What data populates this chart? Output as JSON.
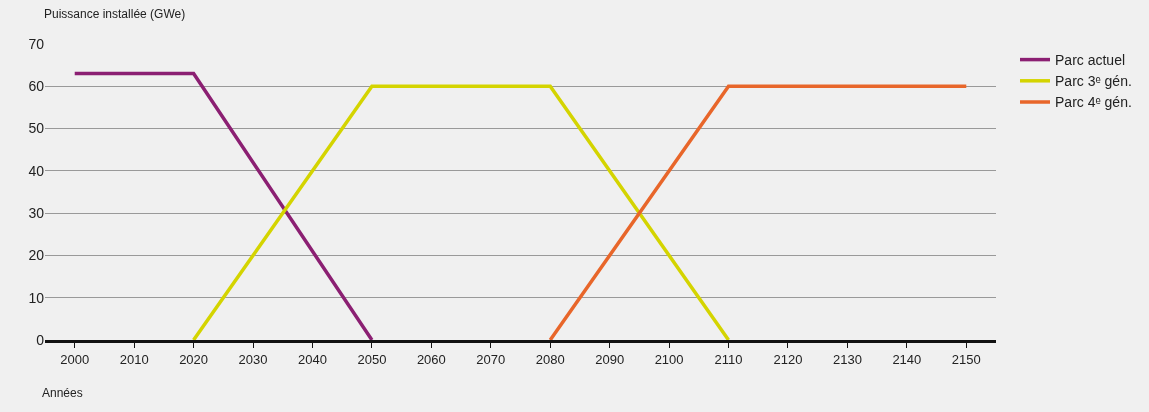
{
  "chart_data": {
    "type": "line",
    "xlabel": "Années",
    "ylabel": "Puissance installée (GWe)",
    "xlim": [
      1995,
      2155
    ],
    "xticks": [
      2000,
      2010,
      2020,
      2030,
      2040,
      2050,
      2060,
      2070,
      2080,
      2090,
      2100,
      2110,
      2120,
      2130,
      2140,
      2150
    ],
    "ylim": [
      0,
      70
    ],
    "yticks": [
      0,
      10,
      20,
      30,
      40,
      50,
      60,
      70
    ],
    "grid": "y",
    "legend": "right",
    "marker": "none",
    "line_style": "solid",
    "series": [
      {
        "name": "Parc actuel",
        "color": "#8b1f72",
        "x": [
          2000,
          2020,
          2050
        ],
        "values": [
          63,
          63,
          0
        ]
      },
      {
        "name": "Parc 3ᵉ gén.",
        "color": "#d4d400",
        "x": [
          2020,
          2050,
          2080,
          2110
        ],
        "values": [
          0,
          60,
          60,
          0
        ]
      },
      {
        "name": "Parc 4ᵉ gén.",
        "color": "#e8662a",
        "x": [
          2080,
          2110,
          2150
        ],
        "values": [
          0,
          60,
          60
        ]
      }
    ]
  }
}
